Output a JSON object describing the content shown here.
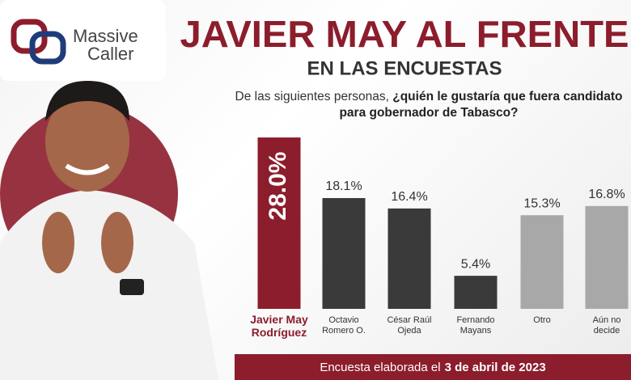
{
  "logo": {
    "line1": "Massive",
    "line2": "Caller"
  },
  "chart_data": {
    "type": "bar",
    "title": "JAVIER MAY AL FRENTE",
    "subtitle": "EN LAS ENCUESTAS",
    "question_intro": "De las siguientes personas,",
    "question_bold": "¿quién le gustaría que fuera candidato para gobernador de Tabasco?",
    "categories": [
      "Javier May\nRodríguez",
      "Octavio\nRomero O.",
      "César Raúl\nOjeda",
      "Fernando\nMayans",
      "Otro",
      "Aún no\ndecide"
    ],
    "values": [
      28.0,
      18.1,
      16.4,
      5.4,
      15.3,
      16.8
    ],
    "value_labels": [
      "28.0%",
      "18.1%",
      "16.4%",
      "5.4%",
      "15.3%",
      "16.8%"
    ],
    "colors": [
      "#8c1d2c",
      "#3a3a3a",
      "#3a3a3a",
      "#3a3a3a",
      "#a8a8a8",
      "#a8a8a8"
    ],
    "footer_intro": "Encuesta elaborada el",
    "footer_date": "3 de abril de 2023"
  }
}
